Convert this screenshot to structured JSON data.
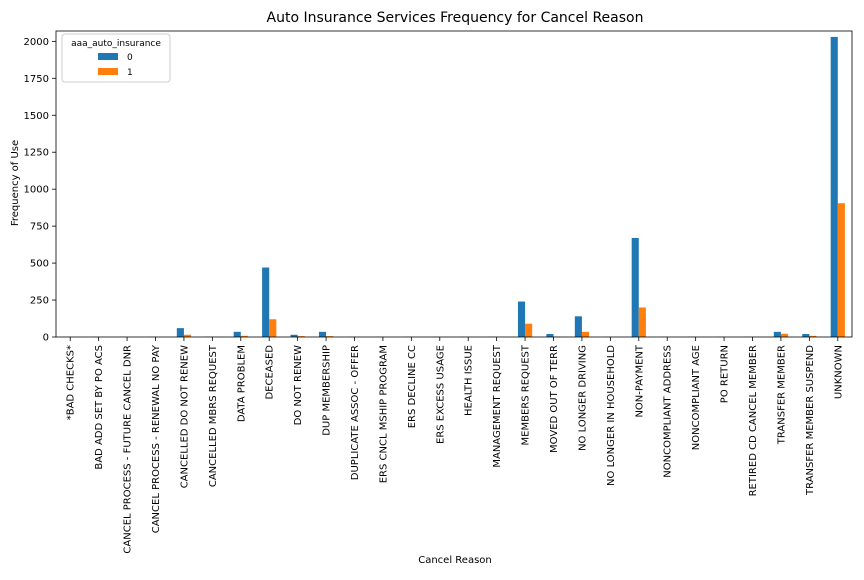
{
  "chart_data": {
    "type": "bar",
    "title": "Auto Insurance Services Frequency for Cancel Reason",
    "xlabel": "Cancel Reason",
    "ylabel": "Frequency of Use",
    "ylim": [
      0,
      2070
    ],
    "yticks": [
      0,
      250,
      500,
      750,
      1000,
      1250,
      1500,
      1750,
      2000
    ],
    "grid": false,
    "legend": {
      "title": "aaa_auto_insurance",
      "placement": "top-left"
    },
    "categories": [
      "*BAD CHECKS*",
      "BAD ADD SET BY PO ACS",
      "CANCEL PROCESS - FUTURE CANCEL DNR",
      "CANCEL PROCESS - RENEWAL NO PAY",
      "CANCELLED DO NOT RENEW",
      "CANCELLED MBRS REQUEST",
      "DATA PROBLEM",
      "DECEASED",
      "DO NOT RENEW",
      "DUP MEMBERSHIP",
      "DUPLICATE ASSOC - OFFER",
      "ERS CNCL MSHIP PROGRAM",
      "ERS DECLINE CC",
      "ERS EXCESS USAGE",
      "HEALTH ISSUE",
      "MANAGEMENT REQUEST",
      "MEMBERS REQUEST",
      "MOVED OUT OF TERR",
      "NO LONGER DRIVING",
      "NO LONGER IN HOUSEHOLD",
      "NON-PAYMENT",
      "NONCOMPLIANT ADDRESS",
      "NONCOMPLIANT AGE",
      "PO RETURN",
      "RETIRED CD CANCEL MEMBER",
      "TRANSFER MEMBER",
      "TRANSFER MEMBER SUSPEND",
      "UNKNOWN"
    ],
    "series": [
      {
        "name": "0",
        "color": "#1f77b4",
        "values": [
          1,
          1,
          1,
          1,
          60,
          2,
          35,
          470,
          15,
          35,
          1,
          1,
          1,
          1,
          1,
          1,
          240,
          20,
          140,
          1,
          670,
          1,
          1,
          1,
          1,
          35,
          20,
          2030
        ]
      },
      {
        "name": "1",
        "color": "#ff7f0e",
        "values": [
          0,
          0,
          0,
          0,
          15,
          1,
          8,
          120,
          6,
          6,
          0,
          0,
          0,
          0,
          0,
          0,
          90,
          3,
          35,
          0,
          200,
          0,
          0,
          0,
          0,
          22,
          8,
          905
        ]
      }
    ]
  }
}
